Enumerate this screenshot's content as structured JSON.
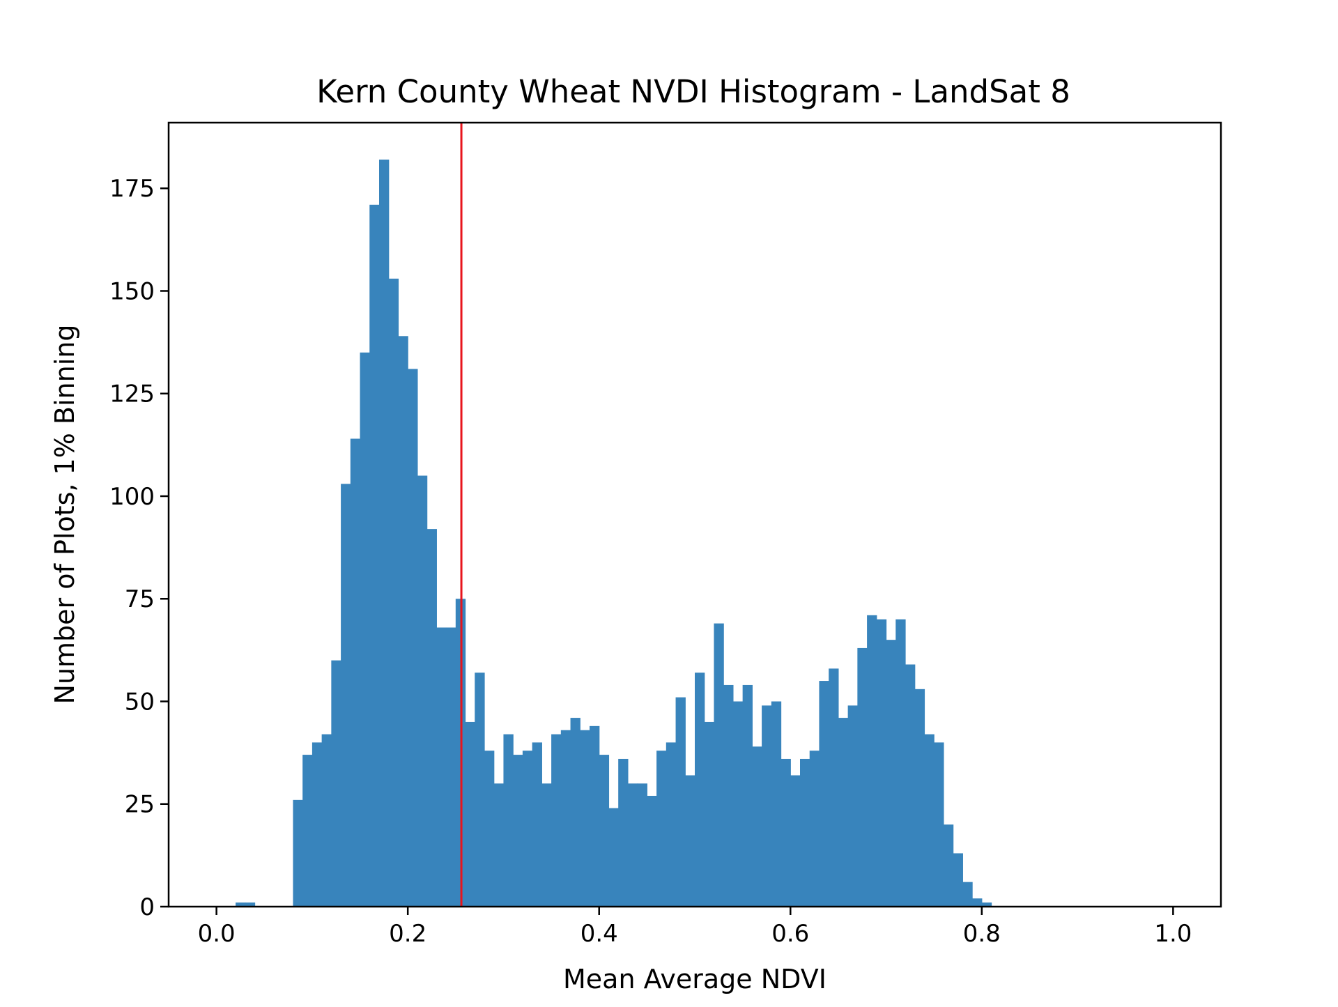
{
  "chart_data": {
    "type": "bar",
    "title": "Kern County Wheat NVDI Histogram - LandSat 8",
    "xlabel": "Mean Average NDVI",
    "ylabel": "Number of Plots, 1% Binning",
    "xlim": [
      -0.05,
      1.05
    ],
    "ylim": [
      0,
      191
    ],
    "xticks": [
      {
        "value": 0.0,
        "label": "0.0"
      },
      {
        "value": 0.2,
        "label": "0.2"
      },
      {
        "value": 0.4,
        "label": "0.4"
      },
      {
        "value": 0.6,
        "label": "0.6"
      },
      {
        "value": 0.8,
        "label": "0.8"
      },
      {
        "value": 1.0,
        "label": "1.0"
      }
    ],
    "yticks": [
      {
        "value": 0,
        "label": "0"
      },
      {
        "value": 25,
        "label": "25"
      },
      {
        "value": 50,
        "label": "50"
      },
      {
        "value": 75,
        "label": "75"
      },
      {
        "value": 100,
        "label": "100"
      },
      {
        "value": 125,
        "label": "125"
      },
      {
        "value": 150,
        "label": "150"
      },
      {
        "value": 175,
        "label": "175"
      }
    ],
    "grid": false,
    "bin_start": 0.0,
    "bin_width": 0.01,
    "values": [
      0,
      0,
      1,
      1,
      0,
      0,
      0,
      0,
      26,
      37,
      40,
      42,
      60,
      103,
      114,
      135,
      171,
      182,
      153,
      139,
      131,
      105,
      92,
      68,
      68,
      75,
      45,
      57,
      38,
      30,
      42,
      37,
      38,
      40,
      30,
      42,
      43,
      46,
      43,
      44,
      37,
      24,
      36,
      30,
      30,
      27,
      38,
      40,
      51,
      32,
      57,
      45,
      69,
      54,
      50,
      54,
      39,
      49,
      50,
      36,
      32,
      36,
      38,
      55,
      58,
      46,
      49,
      63,
      71,
      70,
      65,
      70,
      59,
      53,
      42,
      40,
      20,
      13,
      6,
      2,
      1
    ],
    "bar_color": "#3884bc",
    "reference_line": {
      "x": 0.256,
      "color": "#e8141c"
    }
  }
}
